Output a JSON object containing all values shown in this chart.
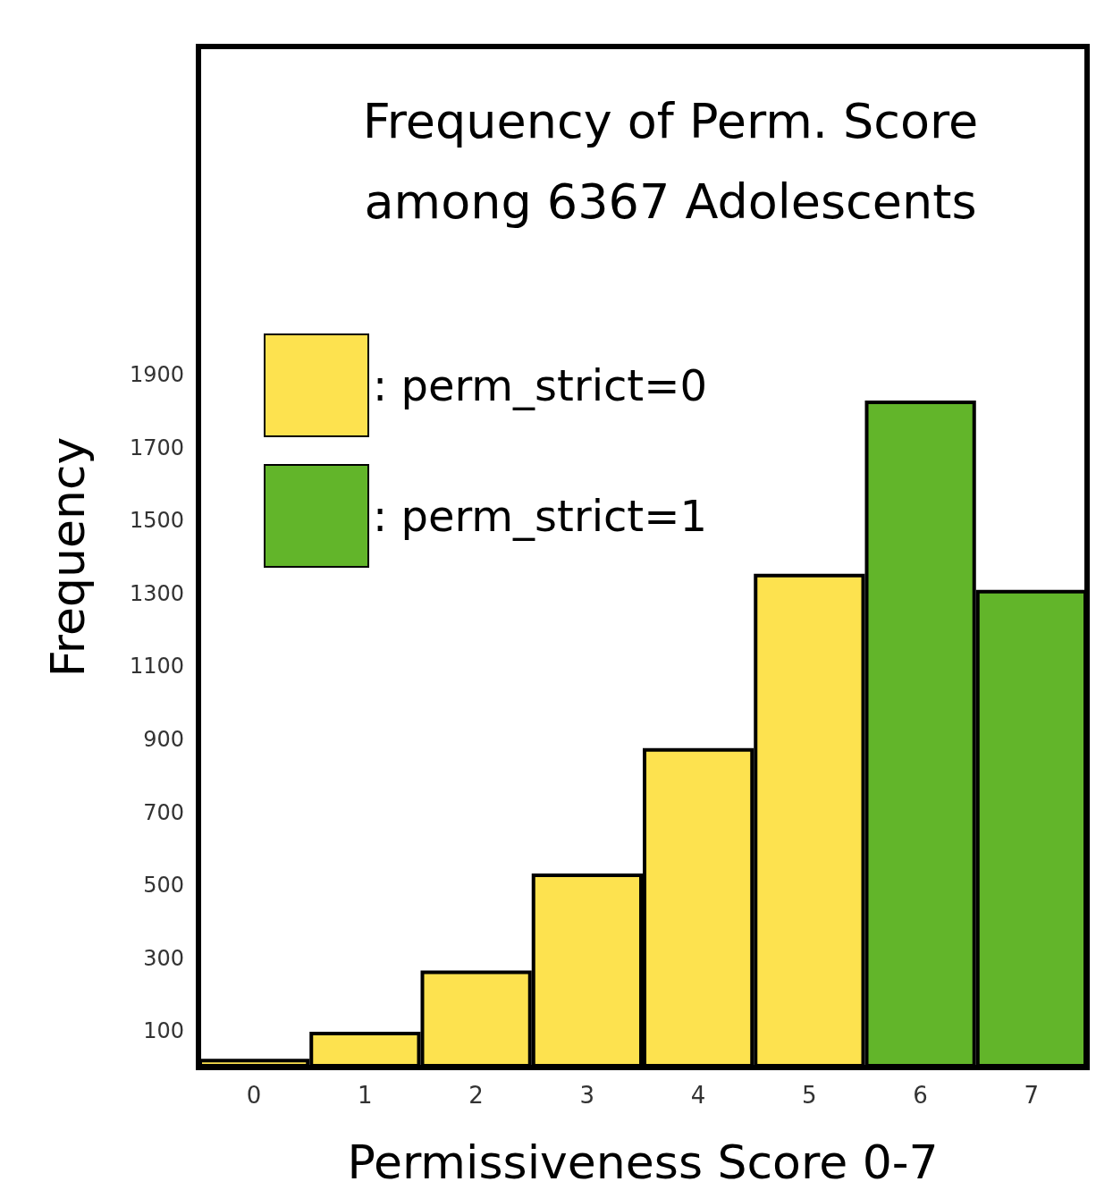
{
  "chart_data": {
    "type": "bar",
    "title": "Frequency of Perm. Score\namong 6367 Adolescents",
    "xlabel": "Permissiveness Score 0-7",
    "ylabel": "Frequency",
    "categories": [
      "0",
      "1",
      "2",
      "3",
      "4",
      "5",
      "6",
      "7"
    ],
    "series": [
      {
        "name": ": perm_strict=0",
        "color": "#fde24f",
        "values": [
          24,
          98,
          266,
          532,
          876,
          1354,
          null,
          null
        ]
      },
      {
        "name": ": perm_strict=1",
        "color": "#62b52a",
        "values": [
          null,
          null,
          null,
          null,
          null,
          null,
          1829,
          1310
        ]
      }
    ],
    "ylim": [
      0,
      2800
    ],
    "yticks": [
      100,
      300,
      500,
      700,
      900,
      1100,
      1300,
      1500,
      1700,
      1900
    ],
    "grid": false,
    "legend": "top left"
  }
}
